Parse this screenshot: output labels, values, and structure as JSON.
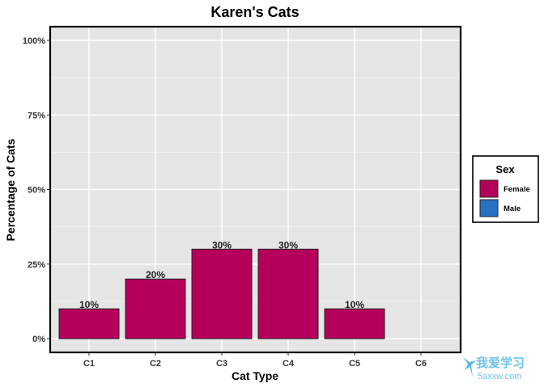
{
  "chart_data": {
    "type": "bar",
    "title": "Karen's Cats",
    "xlabel": "Cat Type",
    "ylabel": "Percentage of Cats",
    "categories": [
      "C1",
      "C2",
      "C3",
      "C4",
      "C5",
      "C6"
    ],
    "y_tick_labels": [
      "0%",
      "25%",
      "50%",
      "75%",
      "100%"
    ],
    "ylim": [
      0,
      1
    ],
    "grid": true,
    "legend_position": "right",
    "legend": {
      "title": "Sex",
      "entries": [
        {
          "label": "Female",
          "color": "#b5005b"
        },
        {
          "label": "Male",
          "color": "#2771c2"
        }
      ]
    },
    "series": [
      {
        "name": "Female",
        "color": "#b5005b",
        "values": [
          0.1,
          0.2,
          0.3,
          0.3,
          0.1,
          0
        ]
      },
      {
        "name": "Male",
        "color": "#2771c2",
        "values": [
          0,
          0,
          0,
          0,
          0,
          0
        ]
      }
    ],
    "data_labels": [
      "10%",
      "20%",
      "30%",
      "30%",
      "10%",
      ""
    ]
  },
  "watermark": {
    "text_cn": "我爱学习",
    "text_url": "5axxw.com"
  }
}
